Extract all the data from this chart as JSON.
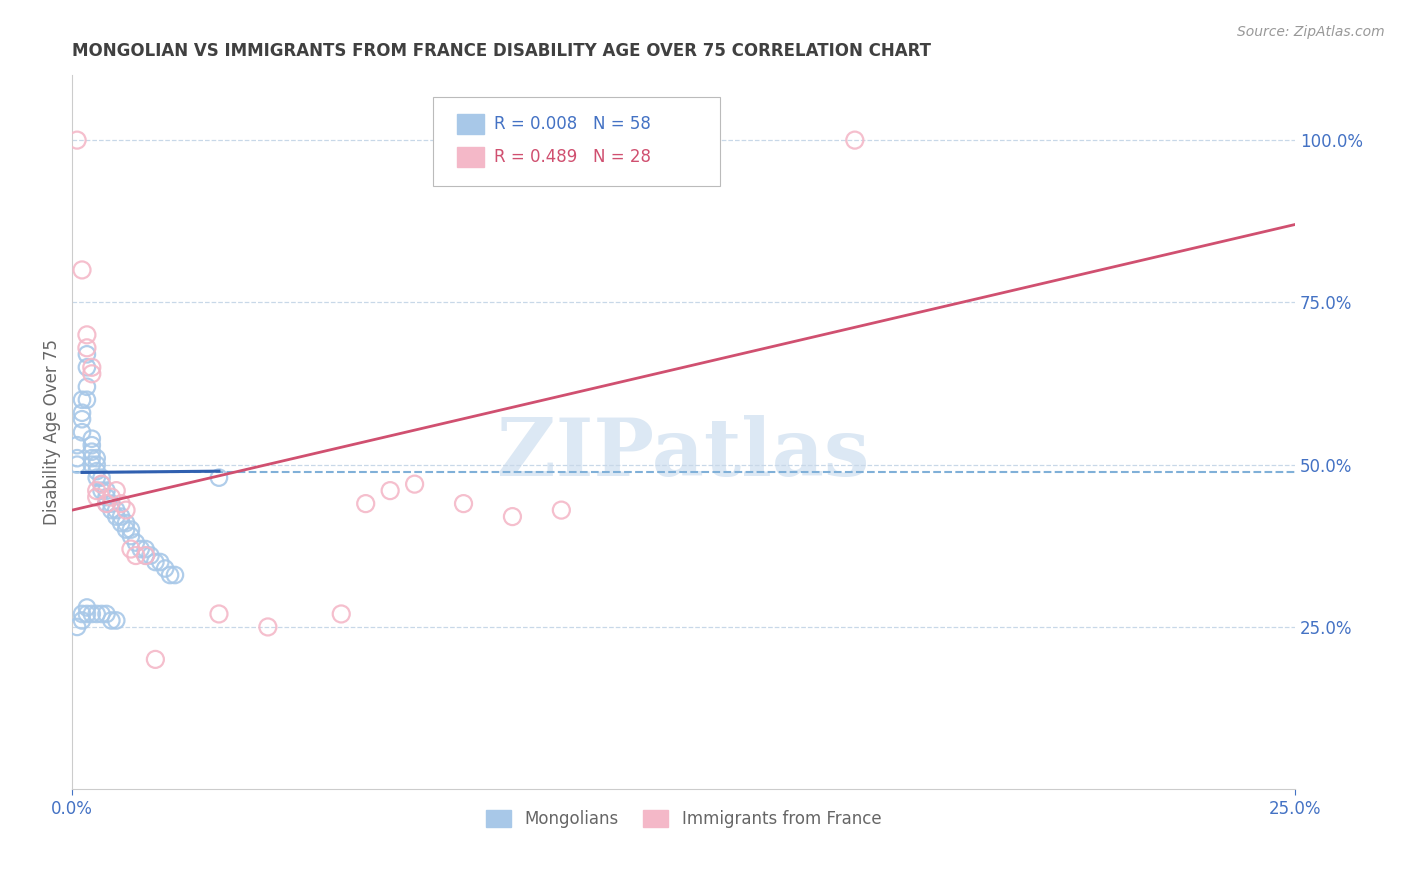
{
  "title": "MONGOLIAN VS IMMIGRANTS FROM FRANCE DISABILITY AGE OVER 75 CORRELATION CHART",
  "source": "Source: ZipAtlas.com",
  "ylabel": "Disability Age Over 75",
  "xlim": [
    0.0,
    0.25
  ],
  "ylim": [
    0.0,
    1.1
  ],
  "yticks": [
    0.25,
    0.5,
    0.75,
    1.0
  ],
  "ytick_labels": [
    "25.0%",
    "50.0%",
    "75.0%",
    "100.0%"
  ],
  "xticks": [
    0.0,
    0.25
  ],
  "xtick_labels": [
    "0.0%",
    "25.0%"
  ],
  "blue_R": 0.008,
  "blue_N": 58,
  "pink_R": 0.489,
  "pink_N": 28,
  "blue_color": "#a8c8e8",
  "pink_color": "#f4b8c8",
  "trend_blue_color": "#3060b0",
  "trend_pink_color": "#d05070",
  "dashed_line_color": "#80b0d8",
  "grid_color": "#c8d8e8",
  "title_color": "#404040",
  "axis_color": "#4472c4",
  "watermark_color": "#dce8f4",
  "blue_x": [
    0.001,
    0.001,
    0.001,
    0.002,
    0.002,
    0.002,
    0.002,
    0.003,
    0.003,
    0.003,
    0.003,
    0.004,
    0.004,
    0.004,
    0.004,
    0.004,
    0.005,
    0.005,
    0.005,
    0.005,
    0.006,
    0.006,
    0.006,
    0.007,
    0.007,
    0.007,
    0.008,
    0.008,
    0.009,
    0.009,
    0.01,
    0.01,
    0.011,
    0.011,
    0.012,
    0.012,
    0.013,
    0.014,
    0.015,
    0.015,
    0.016,
    0.017,
    0.018,
    0.019,
    0.02,
    0.021,
    0.001,
    0.002,
    0.002,
    0.003,
    0.003,
    0.004,
    0.005,
    0.006,
    0.007,
    0.008,
    0.009,
    0.03
  ],
  "blue_y": [
    0.5,
    0.51,
    0.53,
    0.55,
    0.57,
    0.58,
    0.6,
    0.6,
    0.62,
    0.65,
    0.67,
    0.5,
    0.51,
    0.52,
    0.53,
    0.54,
    0.48,
    0.49,
    0.5,
    0.51,
    0.46,
    0.47,
    0.48,
    0.44,
    0.45,
    0.46,
    0.43,
    0.44,
    0.42,
    0.43,
    0.41,
    0.42,
    0.4,
    0.41,
    0.39,
    0.4,
    0.38,
    0.37,
    0.36,
    0.37,
    0.36,
    0.35,
    0.35,
    0.34,
    0.33,
    0.33,
    0.25,
    0.26,
    0.27,
    0.27,
    0.28,
    0.27,
    0.27,
    0.27,
    0.27,
    0.26,
    0.26,
    0.48
  ],
  "pink_x": [
    0.001,
    0.002,
    0.003,
    0.003,
    0.004,
    0.004,
    0.005,
    0.005,
    0.006,
    0.007,
    0.008,
    0.009,
    0.01,
    0.011,
    0.012,
    0.013,
    0.015,
    0.017,
    0.03,
    0.04,
    0.055,
    0.06,
    0.065,
    0.07,
    0.08,
    0.09,
    0.1,
    0.16
  ],
  "pink_y": [
    1.0,
    0.8,
    0.7,
    0.68,
    0.64,
    0.65,
    0.45,
    0.46,
    0.47,
    0.44,
    0.45,
    0.46,
    0.44,
    0.43,
    0.37,
    0.36,
    0.36,
    0.2,
    0.27,
    0.25,
    0.27,
    0.44,
    0.46,
    0.47,
    0.44,
    0.42,
    0.43,
    1.0
  ],
  "blue_trend": [
    0.002,
    0.488,
    0.03,
    0.49
  ],
  "pink_trend": [
    0.0,
    0.43,
    0.25,
    0.87
  ],
  "dashed_line_y": 0.488
}
